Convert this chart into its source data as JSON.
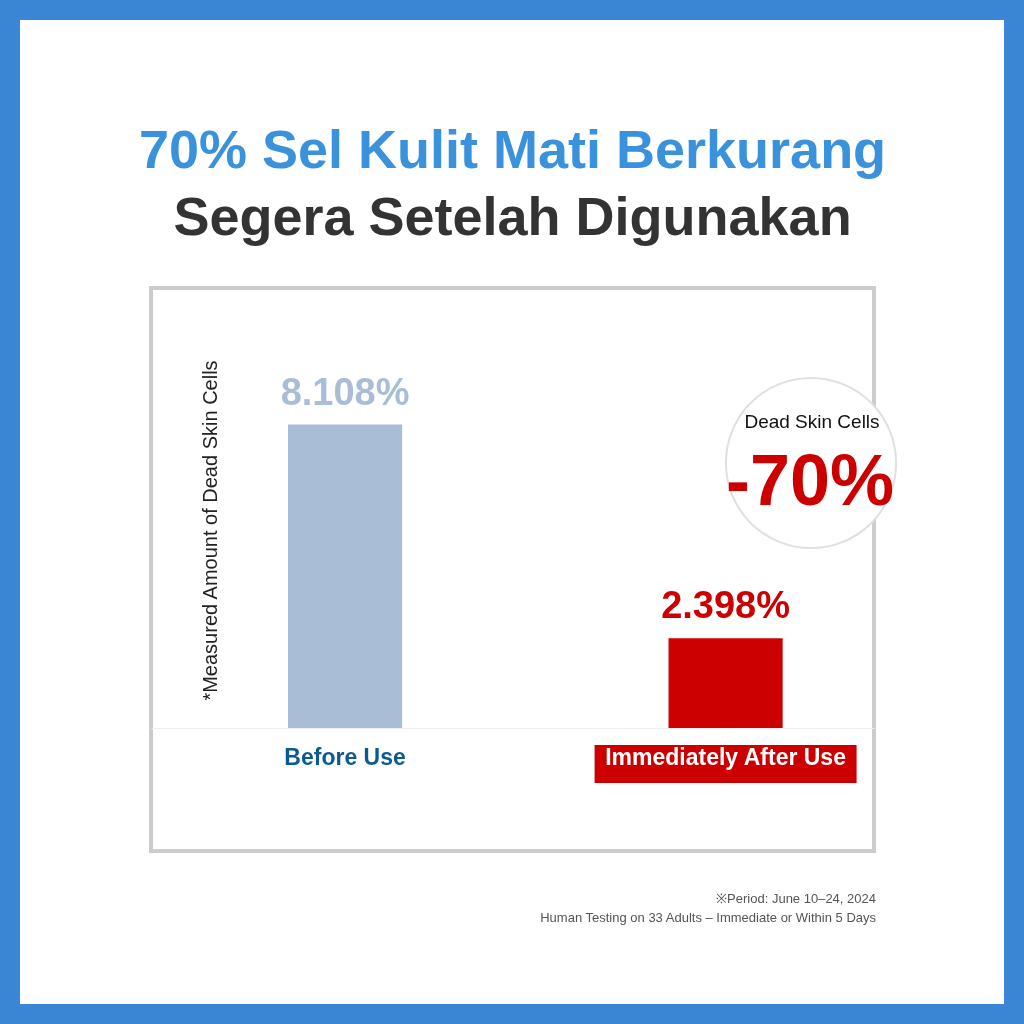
{
  "chart_data": {
    "type": "bar",
    "title": "70% Sel Kulit Mati Berkurang",
    "subtitle": "Segera Setelah Digunakan",
    "ylabel": "*Measured Amount of Dead Skin Cells",
    "categories": [
      "Before Use",
      "Immediately After Use"
    ],
    "values": [
      8.108,
      2.398
    ],
    "colors": [
      "#a9bdd6",
      "#cc0000"
    ],
    "value_labels": [
      "8.108%",
      "2.398%"
    ],
    "annotations": [
      "Dead Skin Cells",
      "-70%",
      "※Period: June 10–24, 2024",
      "Human Testing on 33 Adults – Immediate or Within 5 Days"
    ]
  }
}
